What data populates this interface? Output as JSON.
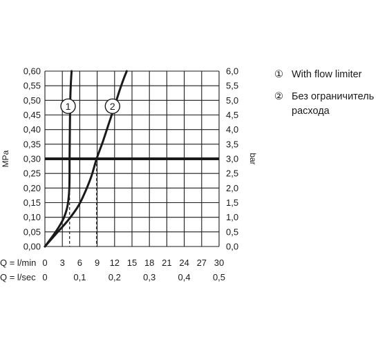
{
  "chart_data": {
    "type": "line",
    "y_left": {
      "label": "MPa",
      "range": [
        0,
        0.6
      ],
      "ticks": [
        "0,00",
        "0,05",
        "0,10",
        "0,15",
        "0,20",
        "0,25",
        "0,30",
        "0,35",
        "0,40",
        "0,45",
        "0,50",
        "0,55",
        "0,60"
      ]
    },
    "y_right": {
      "label": "bar",
      "range": [
        0,
        6
      ],
      "ticks": [
        "0,0",
        "0,5",
        "1,0",
        "1,5",
        "2,0",
        "2,5",
        "3,0",
        "3,5",
        "4,0",
        "4,5",
        "5,0",
        "5,5",
        "6,0"
      ]
    },
    "x_axis": {
      "range": [
        0,
        30
      ],
      "lmin_label": "Q = l/min",
      "lmin_ticks": [
        "0",
        "3",
        "6",
        "9",
        "12",
        "15",
        "18",
        "21",
        "24",
        "27",
        "30"
      ],
      "lsec_label": "Q = l/sec",
      "lsec_ticks": [
        "0",
        "0,1",
        "0,2",
        "0,3",
        "0,4",
        "0,5"
      ]
    },
    "reference_line": {
      "y": 0.3
    },
    "series": [
      {
        "marker": "1",
        "x": [
          0,
          1.5,
          2.5,
          3.3,
          3.9,
          4.2,
          4.25,
          4.3,
          4.35,
          4.45,
          4.6
        ],
        "y": [
          0,
          0.04,
          0.07,
          0.1,
          0.14,
          0.2,
          0.3,
          0.4,
          0.48,
          0.55,
          0.6
        ]
      },
      {
        "marker": "2",
        "x": [
          0,
          2.0,
          4.0,
          5.8,
          7.0,
          8.0,
          8.9,
          10.0,
          11.0,
          12.0,
          12.8,
          13.5,
          14.1
        ],
        "y": [
          0,
          0.045,
          0.09,
          0.14,
          0.19,
          0.24,
          0.3,
          0.36,
          0.42,
          0.48,
          0.53,
          0.57,
          0.6
        ]
      }
    ],
    "dashed_drops": [
      {
        "series": "1",
        "x": 4.25,
        "y": 0.3
      },
      {
        "series": "2",
        "x": 8.9,
        "y": 0.3
      }
    ],
    "legend": [
      {
        "marker": "①",
        "text_lines": [
          "With flow limiter"
        ]
      },
      {
        "marker": "②",
        "text_lines": [
          "Без ограничитель",
          "расхода"
        ]
      }
    ],
    "grid": true,
    "legend_position": "top-right"
  },
  "colors": {
    "ink": "#1a1a1a"
  }
}
